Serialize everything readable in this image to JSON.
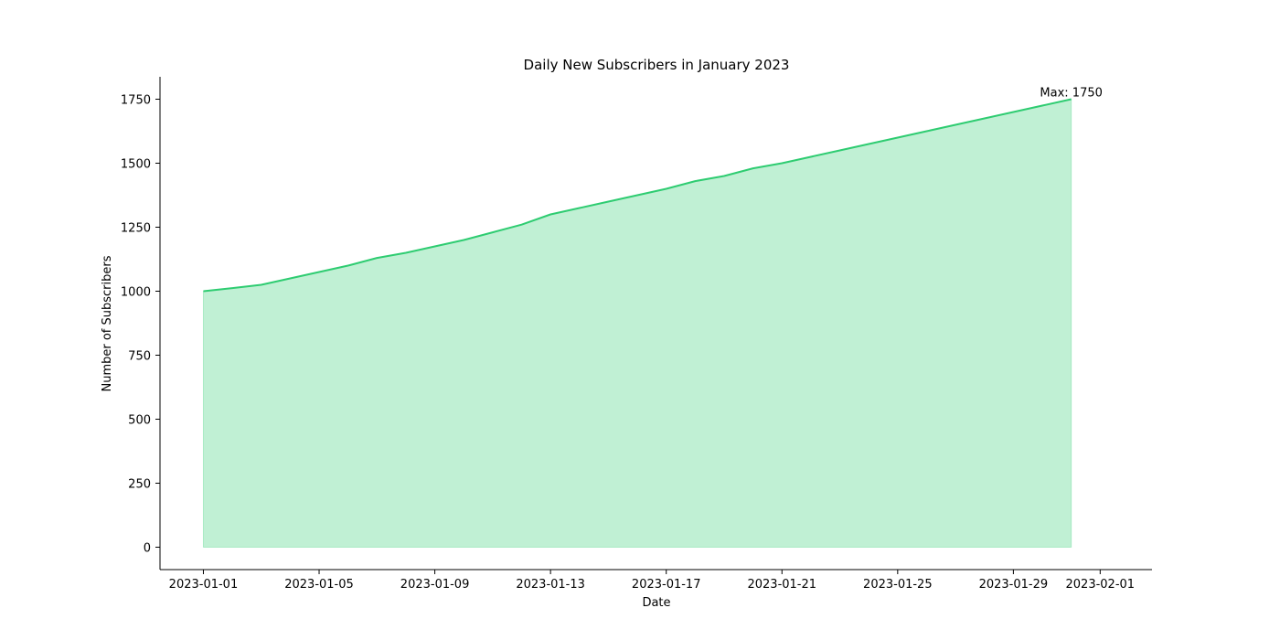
{
  "chart_data": {
    "type": "area",
    "title": "Daily New Subscribers in January 2023",
    "xlabel": "Date",
    "ylabel": "Number of Subscribers",
    "x_tick_labels": [
      "2023-01-01",
      "2023-01-05",
      "2023-01-09",
      "2023-01-13",
      "2023-01-17",
      "2023-01-21",
      "2023-01-25",
      "2023-01-29",
      "2023-02-01"
    ],
    "y_tick_labels": [
      "0",
      "250",
      "500",
      "750",
      "1000",
      "1250",
      "1500",
      "1750"
    ],
    "y_ticks": [
      0,
      250,
      500,
      750,
      1000,
      1250,
      1500,
      1750
    ],
    "xlim": [
      "2022-12-30T12:00",
      "2023-02-02T19:00"
    ],
    "ylim": [
      -87.5,
      1837.5
    ],
    "grid": false,
    "series": [
      {
        "color": "#2ecc71",
        "fill_color": "#2ecc71",
        "x": [
          "2023-01-01",
          "2023-01-02",
          "2023-01-03",
          "2023-01-04",
          "2023-01-05",
          "2023-01-06",
          "2023-01-07",
          "2023-01-08",
          "2023-01-09",
          "2023-01-10",
          "2023-01-11",
          "2023-01-12",
          "2023-01-13",
          "2023-01-14",
          "2023-01-15",
          "2023-01-16",
          "2023-01-17",
          "2023-01-18",
          "2023-01-19",
          "2023-01-20",
          "2023-01-21",
          "2023-01-22",
          "2023-01-23",
          "2023-01-24",
          "2023-01-25",
          "2023-01-26",
          "2023-01-27",
          "2023-01-28",
          "2023-01-29",
          "2023-01-30",
          "2023-01-31"
        ],
        "values": [
          1000,
          1012,
          1025,
          1050,
          1075,
          1100,
          1130,
          1150,
          1175,
          1200,
          1230,
          1260,
          1300,
          1325,
          1350,
          1375,
          1400,
          1430,
          1450,
          1480,
          1500,
          1525,
          1550,
          1575,
          1600,
          1625,
          1650,
          1675,
          1700,
          1725,
          1750
        ]
      }
    ],
    "annotations": [
      {
        "text": "Max: 1750",
        "x": "2023-01-31",
        "y": 1750
      }
    ]
  }
}
